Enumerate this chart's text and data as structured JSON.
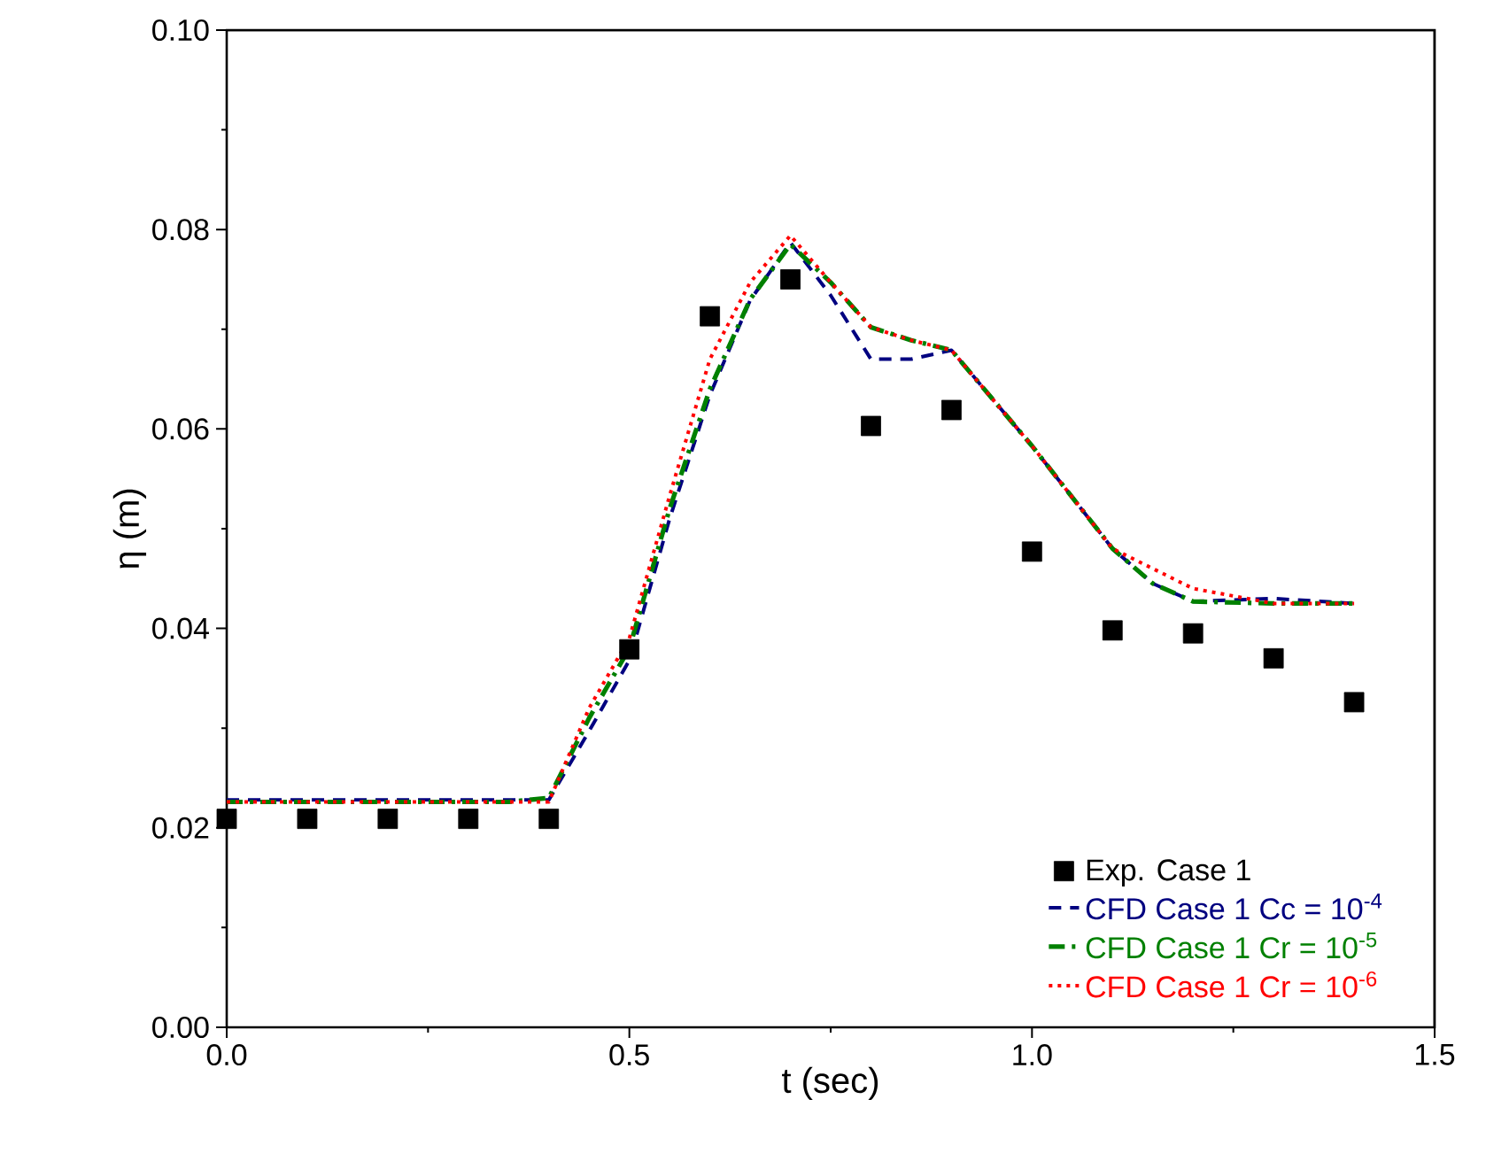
{
  "chart_data": {
    "type": "line",
    "xlabel": "t (sec)",
    "ylabel": "η (m)",
    "xlim": [
      0,
      1.5
    ],
    "ylim": [
      0,
      0.1
    ],
    "xticks": [
      {
        "value": 0,
        "label": "0.0"
      },
      0.5,
      {
        "value": 1,
        "label": "1.0"
      },
      1.5
    ],
    "yticks": [
      {
        "value": 0,
        "label": "0.00"
      },
      {
        "value": 0.02,
        "label": "0.02"
      },
      {
        "value": 0.04,
        "label": "0.04"
      },
      {
        "value": 0.06,
        "label": "0.06"
      },
      {
        "value": 0.08,
        "label": "0.08"
      },
      {
        "value": 0.1,
        "label": "0.10"
      }
    ],
    "grid": false,
    "legend": "bottom right",
    "series": [
      {
        "name": "Exp. Case 1",
        "type": "scatter",
        "marker": "square",
        "color": "#000000",
        "x": [
          0,
          0.1,
          0.2,
          0.3,
          0.4,
          0.5,
          0.6,
          0.7,
          0.8,
          0.9,
          1.0,
          1.1,
          1.2,
          1.3,
          1.4
        ],
        "values": [
          0.0209,
          0.0209,
          0.0209,
          0.0209,
          0.0209,
          0.0379,
          0.0713,
          0.075,
          0.0603,
          0.0619,
          0.0477,
          0.0398,
          0.0395,
          0.037,
          0.0326
        ]
      },
      {
        "name": "CFD Case 1 Cc = 10$^{-4}$",
        "line_style": "dashed",
        "color": "#000080",
        "x": [
          0,
          0.1,
          0.2,
          0.3,
          0.4,
          0.45,
          0.5,
          0.55,
          0.6,
          0.65,
          0.7,
          0.75,
          0.8,
          0.85,
          0.9,
          1.0,
          1.1,
          1.15,
          1.2,
          1.3,
          1.4
        ],
        "values": [
          0.0228,
          0.0228,
          0.0228,
          0.0228,
          0.0228,
          0.0297,
          0.0368,
          0.051,
          0.0634,
          0.0729,
          0.0787,
          0.0734,
          0.067,
          0.067,
          0.0679,
          0.0583,
          0.048,
          0.0445,
          0.0427,
          0.043,
          0.0425
        ]
      },
      {
        "name": "CFD Case 1 Cr = 10$^{-5}$",
        "line_style": "dashdot",
        "color": "#008000",
        "x": [
          0,
          0.1,
          0.2,
          0.3,
          0.35,
          0.4,
          0.45,
          0.5,
          0.55,
          0.6,
          0.65,
          0.7,
          0.75,
          0.8,
          0.85,
          0.9,
          1.0,
          1.1,
          1.15,
          1.2,
          1.3,
          1.4
        ],
        "values": [
          0.0226,
          0.0226,
          0.0226,
          0.0226,
          0.0226,
          0.023,
          0.031,
          0.038,
          0.052,
          0.064,
          0.073,
          0.0785,
          0.0747,
          0.0702,
          0.0689,
          0.0679,
          0.0583,
          0.048,
          0.0445,
          0.0427,
          0.0425,
          0.0425
        ]
      },
      {
        "name": "CFD Case 1 Cr = 10$^{-6}$",
        "line_style": "dotted",
        "color": "#ff0000",
        "x": [
          0,
          0.1,
          0.2,
          0.3,
          0.4,
          0.45,
          0.5,
          0.55,
          0.6,
          0.65,
          0.7,
          0.75,
          0.8,
          0.85,
          0.9,
          1.0,
          1.1,
          1.15,
          1.2,
          1.3,
          1.4
        ],
        "values": [
          0.0226,
          0.0226,
          0.0226,
          0.0226,
          0.0226,
          0.032,
          0.039,
          0.0533,
          0.067,
          0.0747,
          0.0794,
          0.0747,
          0.0702,
          0.0689,
          0.0679,
          0.0583,
          0.048,
          0.046,
          0.044,
          0.0425,
          0.0425
        ]
      }
    ]
  }
}
